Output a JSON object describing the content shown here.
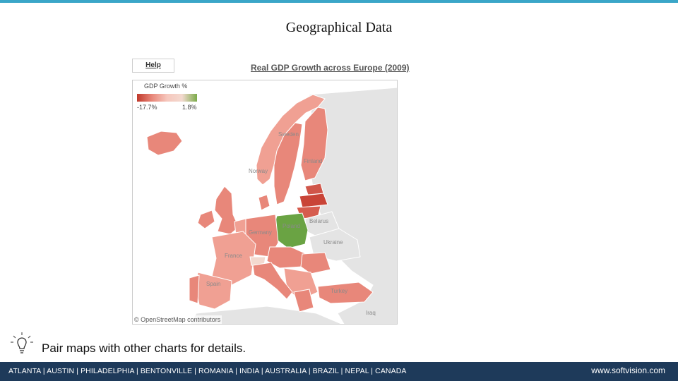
{
  "slide": {
    "title": "Geographical Data",
    "tip": "Pair maps with other charts for details."
  },
  "toolbar": {
    "help_label": "Help"
  },
  "map": {
    "title": "Real GDP Growth across Europe (2009)",
    "legend": {
      "title": "GDP Growth %",
      "min_label": "-17.7%",
      "max_label": "1.8%",
      "colors": [
        "#c0392b",
        "#e8877a",
        "#f3d9cf",
        "#7bab4a"
      ]
    },
    "labels": {
      "sweden": "Sweden",
      "finland": "Finland",
      "norway": "Norway",
      "belarus": "Belarus",
      "poland": "Poland",
      "ukraine": "Ukraine",
      "germany": "Germany",
      "france": "France",
      "spain": "Spain",
      "turkey": "Turkey",
      "iraq": "Iraq"
    },
    "attribution": "© OpenStreetMap contributors"
  },
  "footer": {
    "cities": "ATLANTA | AUSTIN | PHILADELPHIA | BENTONVILLE | ROMANIA | INDIA | AUSTRALIA | BRAZIL | NEPAL | CANADA",
    "site": "www.softvision.com"
  }
}
